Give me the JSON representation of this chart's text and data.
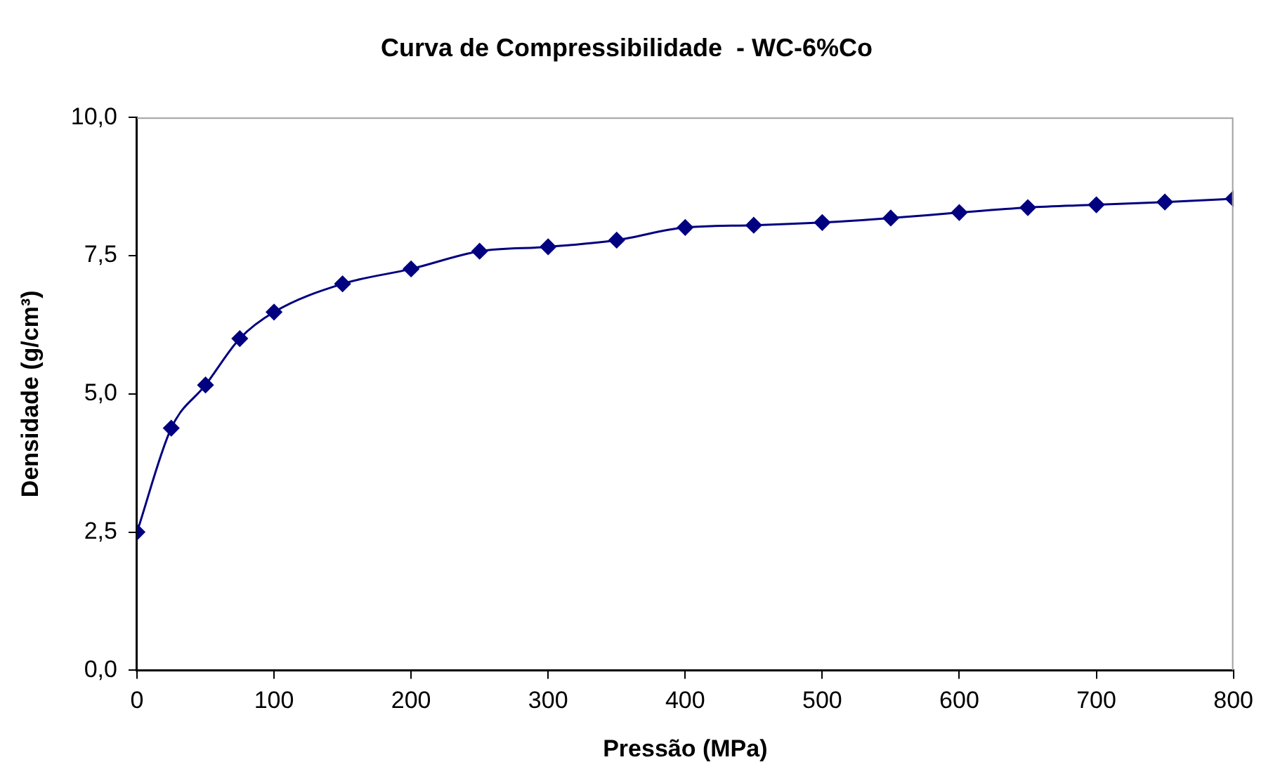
{
  "chart_data": {
    "type": "line",
    "title": "Curva de Compressibilidade  - WC-6%Co",
    "xlabel": "Pressão (MPa)",
    "ylabel": "Densidade (g/cm³)",
    "x": [
      0,
      25,
      50,
      75,
      100,
      150,
      200,
      250,
      300,
      350,
      400,
      450,
      500,
      550,
      600,
      650,
      700,
      750,
      800
    ],
    "series": [
      {
        "color": "#000080",
        "values": [
          2.5,
          4.38,
          5.16,
          6.0,
          6.48,
          6.99,
          7.26,
          7.58,
          7.66,
          7.78,
          8.01,
          8.05,
          8.1,
          8.18,
          8.28,
          8.37,
          8.42,
          8.47,
          8.53
        ]
      }
    ],
    "xlim": [
      0,
      800
    ],
    "xticks": [
      0,
      100,
      200,
      300,
      400,
      500,
      600,
      700,
      800
    ],
    "ylim": [
      0,
      10
    ],
    "yticks": [
      {
        "value": 0,
        "label": "0,0"
      },
      {
        "value": 2.5,
        "label": "2,5"
      },
      {
        "value": 5,
        "label": "5,0"
      },
      {
        "value": 7.5,
        "label": "7,5"
      },
      {
        "value": 10,
        "label": "10,0"
      }
    ],
    "grid": false,
    "legend": false,
    "marker": "diamond",
    "line_style": "solid"
  }
}
